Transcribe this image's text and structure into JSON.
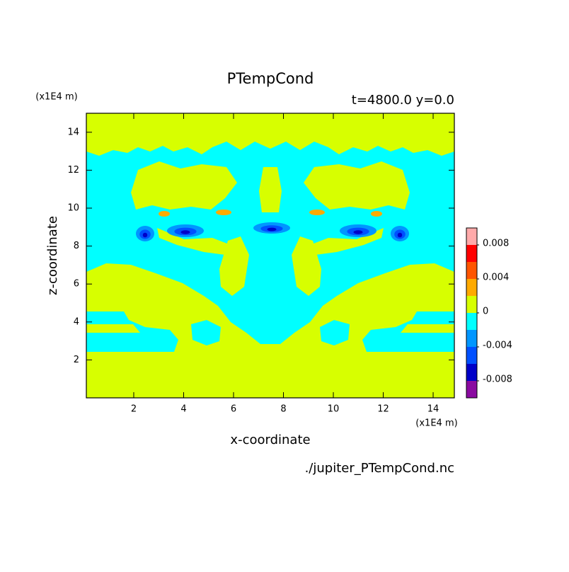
{
  "chart_data": {
    "type": "contour",
    "title": "PTempCond",
    "subtitle": "t=4800.0 y=0.0",
    "x_label": "x-coordinate",
    "y_label": "z-coordinate",
    "x_unit": "(x1E4 m)",
    "y_unit": "(x1E4 m)",
    "source": "./jupiter_PTempCond.nc",
    "xlim": [
      0.1,
      14.85
    ],
    "ylim": [
      0,
      15
    ],
    "xticks": [
      2,
      4,
      6,
      8,
      10,
      12,
      14
    ],
    "yticks": [
      2,
      4,
      6,
      8,
      10,
      12,
      14
    ],
    "levels": [
      -0.01,
      -0.008,
      -0.006,
      -0.004,
      -0.002,
      0,
      0.002,
      0.004,
      0.006,
      0.008,
      0.01
    ],
    "colors": [
      "#8a0aa0",
      "#0000c8",
      "#0050ff",
      "#0096ff",
      "#00ffff",
      "#d7ff00",
      "#ffaa00",
      "#ff5500",
      "#ff0000",
      "#ffaaaa"
    ],
    "colorbar_ticks": [
      -0.008,
      -0.004,
      0,
      0.004,
      0.008
    ]
  }
}
